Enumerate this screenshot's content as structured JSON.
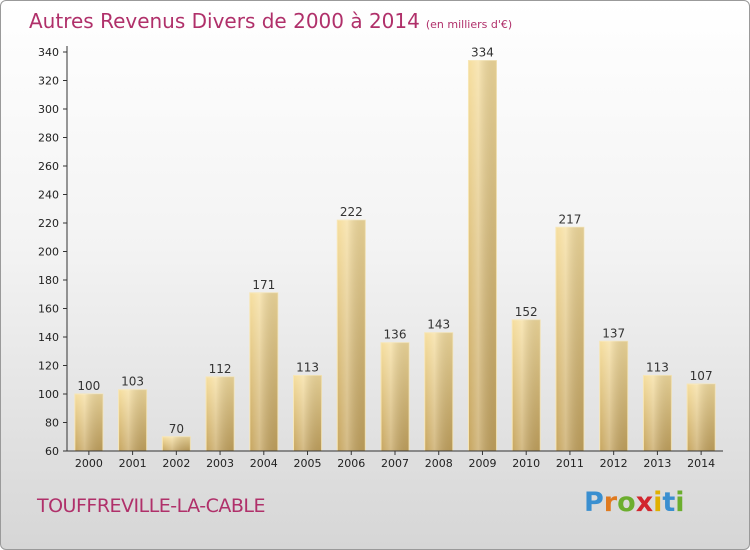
{
  "header": {
    "title": "Autres Revenus Divers de 2000 à 2014",
    "unit": "(en milliers d'€)"
  },
  "footer": {
    "commune": "TOUFFREVILLE-LA-CABLE",
    "logo_letters": [
      "P",
      "r",
      "o",
      "x",
      "i",
      "t",
      "i"
    ],
    "logo_colors": [
      "#3a8fd0",
      "#e07a1f",
      "#6cae2e",
      "#d2262e",
      "#e0b000",
      "#3a8fd0",
      "#6cae2e"
    ]
  },
  "colors": {
    "title": "#b0306a",
    "bar_light": "#f5dc9a",
    "bar_dark": "#c9a862",
    "axis": "#333333"
  },
  "chart_data": {
    "type": "bar",
    "categories": [
      "2000",
      "2001",
      "2002",
      "2003",
      "2004",
      "2005",
      "2006",
      "2007",
      "2008",
      "2009",
      "2010",
      "2011",
      "2012",
      "2013",
      "2014"
    ],
    "values": [
      100,
      103,
      70,
      112,
      171,
      113,
      222,
      136,
      143,
      334,
      152,
      217,
      137,
      113,
      107
    ],
    "ylim": [
      60,
      340
    ],
    "yticks": [
      60,
      80,
      100,
      120,
      140,
      160,
      180,
      200,
      220,
      240,
      260,
      280,
      300,
      320,
      340
    ],
    "grid": false
  }
}
